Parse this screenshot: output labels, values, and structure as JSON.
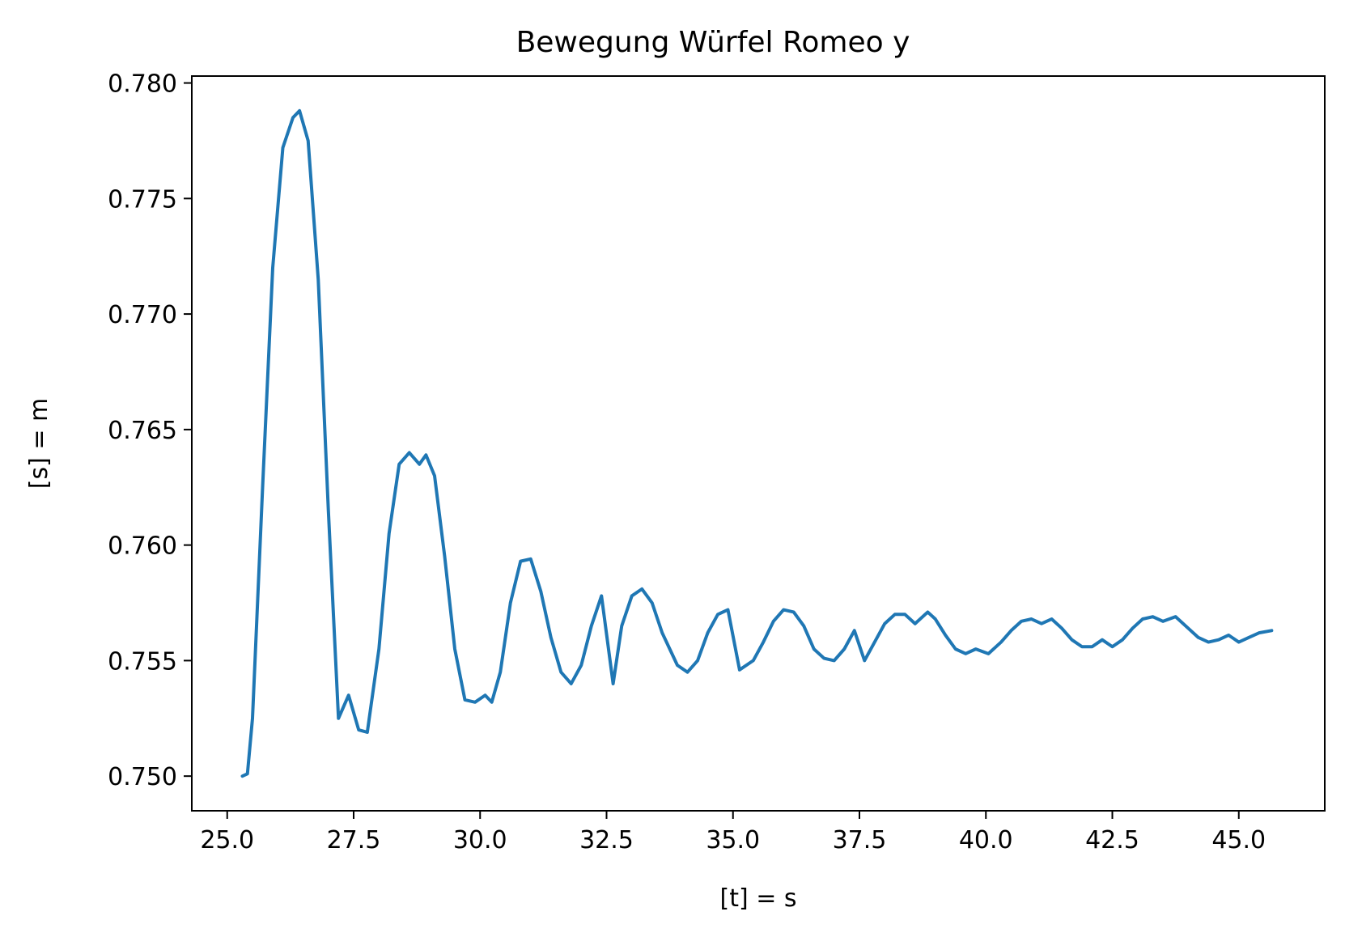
{
  "chart_data": {
    "type": "line",
    "title": "Bewegung Würfel Romeo y",
    "xlabel": "[t] = s",
    "ylabel": "[s] = m",
    "xlim": [
      24.3,
      46.7
    ],
    "ylim": [
      0.7485,
      0.7803
    ],
    "xticks": [
      "25.0",
      "27.5",
      "30.0",
      "32.5",
      "35.0",
      "37.5",
      "40.0",
      "42.5",
      "45.0"
    ],
    "yticks": [
      "0.750",
      "0.755",
      "0.760",
      "0.765",
      "0.770",
      "0.775",
      "0.780"
    ],
    "grid": false,
    "line_color": "#1f77b4",
    "series": [
      {
        "x": [
          25.3,
          25.4,
          25.5,
          25.7,
          25.9,
          26.1,
          26.3,
          26.43,
          26.6,
          26.8,
          27.0,
          27.2,
          27.4,
          27.6,
          27.77,
          28.0,
          28.2,
          28.4,
          28.6,
          28.8,
          28.93,
          29.1,
          29.3,
          29.5,
          29.7,
          29.9,
          30.1,
          30.23,
          30.4,
          30.6,
          30.8,
          31.0,
          31.2,
          31.4,
          31.6,
          31.8,
          32.0,
          32.2,
          32.4,
          32.63,
          32.8,
          33.0,
          33.2,
          33.4,
          33.6,
          33.9,
          34.1,
          34.3,
          34.5,
          34.7,
          34.9,
          35.13,
          35.4,
          35.6,
          35.8,
          36.0,
          36.2,
          36.4,
          36.6,
          36.8,
          37.0,
          37.2,
          37.4,
          37.6,
          37.8,
          38.0,
          38.2,
          38.4,
          38.6,
          38.85,
          39.0,
          39.2,
          39.4,
          39.6,
          39.8,
          40.05,
          40.3,
          40.5,
          40.7,
          40.9,
          41.1,
          41.3,
          41.5,
          41.7,
          41.9,
          42.1,
          42.3,
          42.5,
          42.7,
          42.9,
          43.1,
          43.3,
          43.5,
          43.75,
          44.0,
          44.2,
          44.4,
          44.6,
          44.8,
          45.0,
          45.2,
          45.4,
          45.65
        ],
        "y": [
          0.75,
          0.7501,
          0.7525,
          0.7625,
          0.772,
          0.7772,
          0.7785,
          0.7788,
          0.7775,
          0.7715,
          0.7615,
          0.7525,
          0.7535,
          0.752,
          0.7519,
          0.7555,
          0.7605,
          0.7635,
          0.764,
          0.7635,
          0.7639,
          0.763,
          0.7595,
          0.7555,
          0.7533,
          0.7532,
          0.7535,
          0.7532,
          0.7545,
          0.7575,
          0.7593,
          0.7594,
          0.758,
          0.756,
          0.7545,
          0.754,
          0.7548,
          0.7565,
          0.7578,
          0.754,
          0.7565,
          0.7578,
          0.7581,
          0.7575,
          0.7562,
          0.7548,
          0.7545,
          0.755,
          0.7562,
          0.757,
          0.7572,
          0.7546,
          0.755,
          0.7558,
          0.7567,
          0.7572,
          0.7571,
          0.7565,
          0.7555,
          0.7551,
          0.755,
          0.7555,
          0.7563,
          0.755,
          0.7558,
          0.7566,
          0.757,
          0.757,
          0.7566,
          0.7571,
          0.7568,
          0.7561,
          0.7555,
          0.7553,
          0.7555,
          0.7553,
          0.7558,
          0.7563,
          0.7567,
          0.7568,
          0.7566,
          0.7568,
          0.7564,
          0.7559,
          0.7556,
          0.7556,
          0.7559,
          0.7556,
          0.7559,
          0.7564,
          0.7568,
          0.7569,
          0.7567,
          0.7569,
          0.7564,
          0.756,
          0.7558,
          0.7559,
          0.7561,
          0.7558,
          0.756,
          0.7562,
          0.7563
        ]
      }
    ]
  }
}
